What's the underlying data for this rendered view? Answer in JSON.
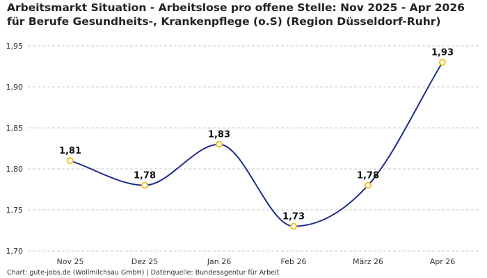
{
  "chart_data": {
    "type": "line",
    "title": "Arbeitsmarkt Situation - Arbeitslose pro offene Stelle: Nov 2025 - Apr 2026 für Berufe Gesundheits-, Krankenpflege (o.S) (Region Düsseldorf-Ruhr)",
    "categories": [
      "Nov 25",
      "Dez 25",
      "Jan 26",
      "Feb 26",
      "März 26",
      "Apr 26"
    ],
    "values": [
      1.81,
      1.78,
      1.83,
      1.73,
      1.78,
      1.93
    ],
    "data_labels": [
      "1,81",
      "1,78",
      "1,83",
      "1,73",
      "1,78",
      "1,93"
    ],
    "y_ticks": [
      1.7,
      1.75,
      1.8,
      1.85,
      1.9,
      1.95
    ],
    "y_tick_labels": [
      "1,70",
      "1,75",
      "1,80",
      "1,85",
      "1,90",
      "1,95"
    ],
    "ylim": [
      1.7,
      1.95
    ],
    "xlabel": "",
    "ylabel": "",
    "grid": true,
    "smooth": true,
    "colors": {
      "line": "#1f2a8c",
      "marker_stroke": "#f2c01e",
      "marker_fill": "#ffffff",
      "grid": "#c8c8c8"
    }
  },
  "footer": "Chart: gute-jobs.de (Wollmilchsau GmbH) | Datenquelle: Bundesagentur für Arbeit"
}
